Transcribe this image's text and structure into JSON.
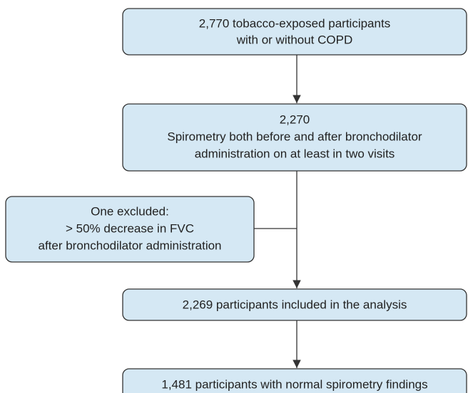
{
  "nodes": [
    {
      "lines": [
        "2,770 tobacco-exposed participants",
        "with or without COPD"
      ]
    },
    {
      "lines": [
        "2,270",
        "Spirometry both before and after bronchodilator",
        "administration on at least in two visits"
      ]
    },
    {
      "lines": [
        "One excluded:",
        "> 50% decrease in FVC",
        "after bronchodilator administration"
      ]
    },
    {
      "lines": [
        "2,269 participants included in the analysis"
      ]
    },
    {
      "lines": [
        "1,481 participants with normal spirometry findings"
      ]
    }
  ]
}
